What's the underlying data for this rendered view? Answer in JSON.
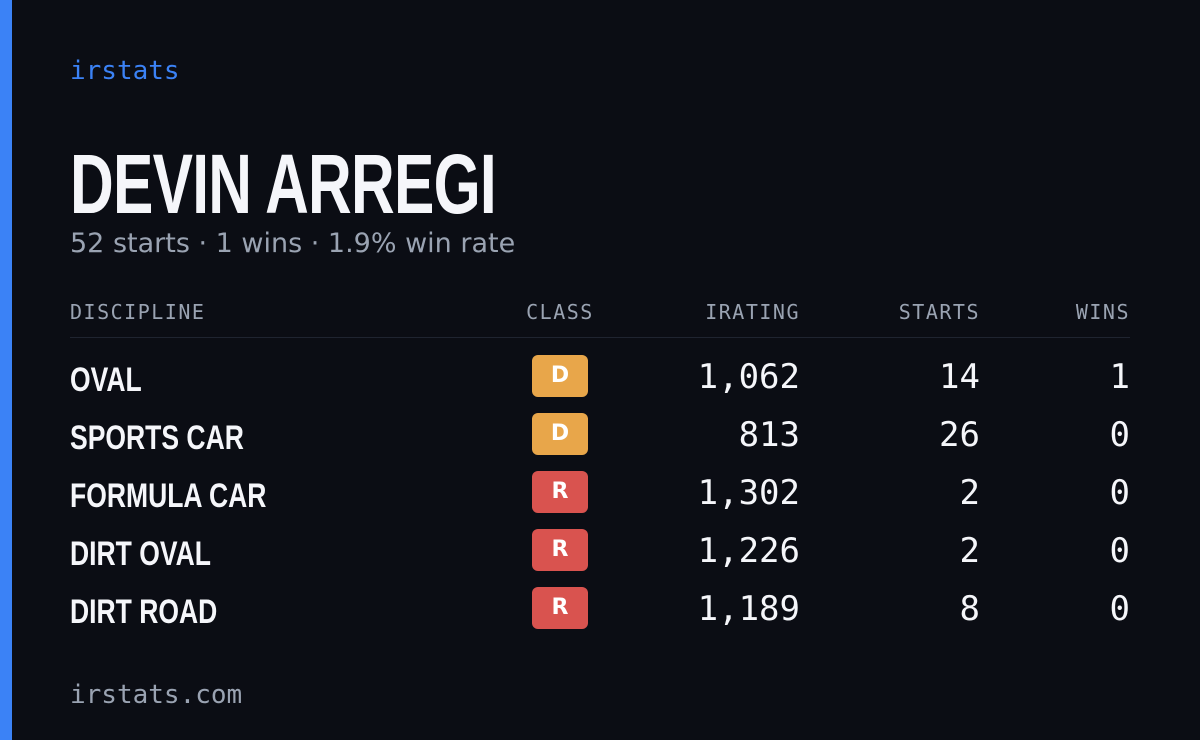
{
  "brand": "irstats",
  "driver": {
    "name": "DEVIN ARREGI",
    "summary": "52 starts · 1 wins · 1.9% win rate"
  },
  "table": {
    "columns": [
      "DISCIPLINE",
      "CLASS",
      "IRATING",
      "STARTS",
      "WINS"
    ],
    "rows": [
      {
        "discipline": "OVAL",
        "class": {
          "label": "D",
          "color": "#e8a64a"
        },
        "irating": "1,062",
        "starts": "14",
        "wins": "1"
      },
      {
        "discipline": "SPORTS CAR",
        "class": {
          "label": "D",
          "color": "#e8a64a"
        },
        "irating": "813",
        "starts": "26",
        "wins": "0"
      },
      {
        "discipline": "FORMULA CAR",
        "class": {
          "label": "R",
          "color": "#d9534f"
        },
        "irating": "1,302",
        "starts": "2",
        "wins": "0"
      },
      {
        "discipline": "DIRT OVAL",
        "class": {
          "label": "R",
          "color": "#d9534f"
        },
        "irating": "1,226",
        "starts": "2",
        "wins": "0"
      },
      {
        "discipline": "DIRT ROAD",
        "class": {
          "label": "R",
          "color": "#d9534f"
        },
        "irating": "1,189",
        "starts": "8",
        "wins": "0"
      }
    ]
  },
  "footer": "irstats.com"
}
